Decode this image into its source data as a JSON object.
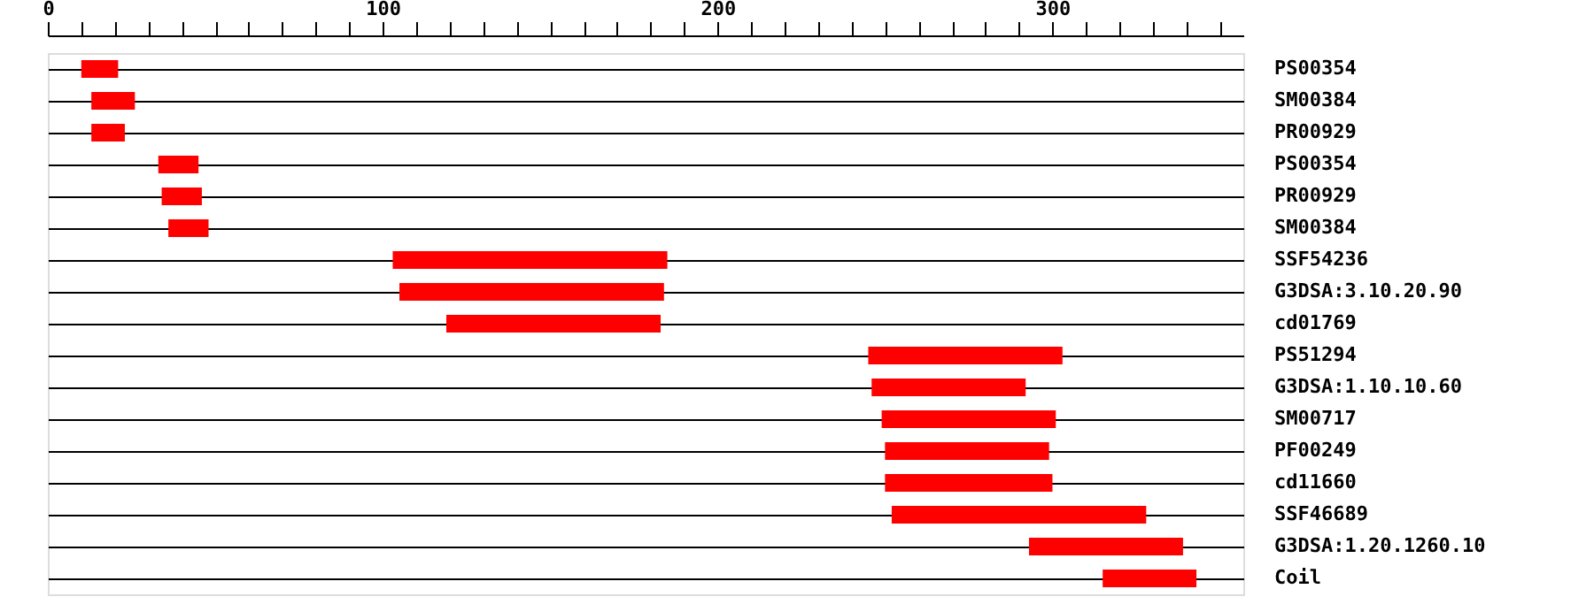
{
  "chart_data": {
    "type": "bar",
    "orientation": "horizontal",
    "categories": [
      "PS00354",
      "SM00384",
      "PR00929",
      "PS00354",
      "PR00929",
      "SM00384",
      "SSF54236",
      "G3DSA:3.10.20.90",
      "cd01769",
      "PS51294",
      "G3DSA:1.10.10.60",
      "SM00717",
      "PF00249",
      "cd11660",
      "SSF46689",
      "G3DSA:1.20.1260.10",
      "Coil"
    ],
    "base": [
      10,
      13,
      13,
      33,
      34,
      36,
      103,
      105,
      119,
      245,
      246,
      249,
      250,
      250,
      252,
      293,
      315
    ],
    "values": [
      11,
      13,
      10,
      12,
      12,
      12,
      82,
      79,
      64,
      58,
      46,
      52,
      49,
      50,
      76,
      46,
      28
    ],
    "color": "#ff0000",
    "xlim": [
      0,
      357
    ],
    "xticks": [
      0,
      {
        "value": 10,
        "label": null
      },
      {
        "value": 20,
        "label": null
      },
      {
        "value": 30,
        "label": null
      },
      {
        "value": 40,
        "label": null
      },
      {
        "value": 50,
        "label": null
      },
      {
        "value": 60,
        "label": null
      },
      {
        "value": 70,
        "label": null
      },
      {
        "value": 80,
        "label": null
      },
      {
        "value": 90,
        "label": null
      },
      100,
      {
        "value": 110,
        "label": null
      },
      {
        "value": 120,
        "label": null
      },
      {
        "value": 130,
        "label": null
      },
      {
        "value": 140,
        "label": null
      },
      {
        "value": 150,
        "label": null
      },
      {
        "value": 160,
        "label": null
      },
      {
        "value": 170,
        "label": null
      },
      {
        "value": 180,
        "label": null
      },
      {
        "value": 190,
        "label": null
      },
      200,
      {
        "value": 210,
        "label": null
      },
      {
        "value": 220,
        "label": null
      },
      {
        "value": 230,
        "label": null
      },
      {
        "value": 240,
        "label": null
      },
      {
        "value": 250,
        "label": null
      },
      {
        "value": 260,
        "label": null
      },
      {
        "value": 270,
        "label": null
      },
      {
        "value": 280,
        "label": null
      },
      {
        "value": 290,
        "label": null
      },
      300,
      {
        "value": 310,
        "label": null
      },
      {
        "value": 320,
        "label": null
      },
      {
        "value": 330,
        "label": null
      },
      {
        "value": 340,
        "label": null
      },
      {
        "value": 350,
        "label": null
      }
    ],
    "grid": "y"
  }
}
